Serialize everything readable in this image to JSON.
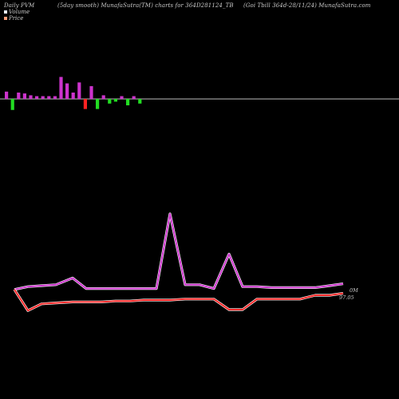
{
  "header": {
    "left": "Daily PVM",
    "mid": "(5day smooth) MunafaSutra(TM) charts for 364D281124_TB",
    "right": "(Goi Tbill 364d-28/11/24) MunafaSutra.com"
  },
  "legend": [
    {
      "label": "Volume",
      "color": "#e8f0ff"
    },
    {
      "label": "Price",
      "color": "#ffa07a"
    }
  ],
  "chart_data": {
    "type": "line",
    "end_labels": {
      "volume": "0M",
      "price": "97.05"
    },
    "volume_bars": [
      {
        "value": 8,
        "color": "#cc33cc"
      },
      {
        "value": -12,
        "color": "#22dd22"
      },
      {
        "value": 7,
        "color": "#cc33cc"
      },
      {
        "value": 6,
        "color": "#cc33cc"
      },
      {
        "value": 4,
        "color": "#cc33cc"
      },
      {
        "value": 3,
        "color": "#cc33cc"
      },
      {
        "value": 3,
        "color": "#cc33cc"
      },
      {
        "value": 3,
        "color": "#cc33cc"
      },
      {
        "value": 3,
        "color": "#cc33cc"
      },
      {
        "value": 24,
        "color": "#cc33cc"
      },
      {
        "value": 17,
        "color": "#cc33cc"
      },
      {
        "value": 7,
        "color": "#cc33cc"
      },
      {
        "value": 18,
        "color": "#cc33cc"
      },
      {
        "value": -11,
        "color": "#ff2222"
      },
      {
        "value": 14,
        "color": "#cc33cc"
      },
      {
        "value": -11,
        "color": "#22dd22"
      },
      {
        "value": 4,
        "color": "#cc33cc"
      },
      {
        "value": -5,
        "color": "#22dd22"
      },
      {
        "value": -3,
        "color": "#22dd22"
      },
      {
        "value": 3,
        "color": "#cc33cc"
      },
      {
        "value": -7,
        "color": "#22dd22"
      },
      {
        "value": 3,
        "color": "#cc33cc"
      },
      {
        "value": -5,
        "color": "#22dd22"
      }
    ],
    "series": [
      {
        "color": "#cc33cc",
        "x": [
          18,
          35,
          52,
          70,
          91,
          108,
          126,
          145,
          163,
          180,
          196,
          213,
          232,
          250,
          268,
          287,
          304,
          322,
          340,
          358,
          376,
          395,
          413,
          430
        ],
        "values": [
          61,
          64,
          65,
          66,
          73,
          62,
          62,
          62,
          62,
          62,
          62,
          140,
          66,
          66,
          62,
          98,
          64,
          64,
          63,
          63,
          63,
          63,
          65,
          67
        ]
      },
      {
        "color": "#ff2a2a",
        "x": [
          18,
          35,
          52,
          70,
          91,
          108,
          126,
          145,
          163,
          180,
          196,
          213,
          232,
          250,
          268,
          287,
          304,
          322,
          340,
          358,
          376,
          395,
          413,
          430
        ],
        "values": [
          61,
          39,
          46,
          47,
          48,
          48,
          48,
          49,
          49,
          50,
          50,
          50,
          51,
          51,
          51,
          40,
          40,
          51,
          51,
          51,
          51,
          55,
          55,
          57
        ]
      }
    ],
    "ylim": [
      0,
      185
    ]
  }
}
